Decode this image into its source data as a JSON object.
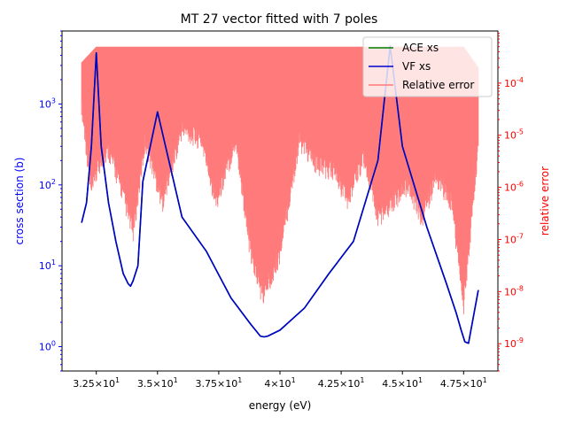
{
  "chart_data": {
    "type": "line",
    "title": "MT 27 vector fitted with 7 poles",
    "xlabel": "energy (eV)",
    "ylabel_left": "cross section (b)",
    "ylabel_right": "relative error",
    "x_range": [
      31.1,
      48.9
    ],
    "x_ticks": [
      32.5,
      35.0,
      37.5,
      40.0,
      42.5,
      45.0,
      47.5
    ],
    "x_tick_labels": [
      "3.25×10^1",
      "3.5×10^1",
      "3.75×10^1",
      "4×10^1",
      "4.25×10^1",
      "4.5×10^1",
      "4.75×10^1"
    ],
    "y_left_scale": "log",
    "y_left_range": [
      0.5,
      8000
    ],
    "y_left_ticks": [
      1,
      10,
      100,
      1000
    ],
    "y_left_tick_labels": [
      "10^0",
      "10^1",
      "10^2",
      "10^3"
    ],
    "y_right_scale": "log",
    "y_right_range": [
      3e-10,
      0.001
    ],
    "y_right_ticks": [
      1e-09,
      1e-08,
      1e-07,
      1e-06,
      1e-05,
      0.0001
    ],
    "y_right_tick_labels": [
      "10^-9",
      "10^-8",
      "10^-7",
      "10^-6",
      "10^-5",
      "10^-4"
    ],
    "grid": false,
    "legend_position": "top-right",
    "colors": {
      "ace": "#008000",
      "vf": "#0000cc",
      "error": "#ff7a7a",
      "left_axis": "#0000ff",
      "right_axis": "#ff0000",
      "axis": "#000000"
    },
    "series": [
      {
        "name": "ACE xs",
        "axis": "left",
        "x": [
          31.9,
          32.1,
          32.3,
          32.5,
          32.7,
          33.0,
          33.3,
          33.6,
          33.8,
          33.9,
          34.0,
          34.2,
          34.4,
          35.0,
          36.0,
          37.0,
          38.0,
          38.8,
          39.2,
          39.35,
          39.5,
          40.0,
          41.0,
          42.0,
          43.0,
          44.0,
          44.5,
          45.0,
          46.0,
          46.8,
          47.2,
          47.4,
          47.55,
          47.7,
          48.1
        ],
        "values": [
          34,
          60,
          300,
          4300,
          300,
          60,
          20,
          8,
          6,
          5.6,
          6.5,
          10,
          110,
          800,
          40,
          15,
          4,
          1.9,
          1.35,
          1.32,
          1.35,
          1.6,
          3,
          8,
          20,
          200,
          5200,
          300,
          30,
          6,
          2.6,
          1.6,
          1.15,
          1.1,
          5
        ]
      },
      {
        "name": "VF xs",
        "axis": "left",
        "x": [
          31.9,
          32.1,
          32.3,
          32.5,
          32.7,
          33.0,
          33.3,
          33.6,
          33.8,
          33.9,
          34.0,
          34.2,
          34.4,
          35.0,
          36.0,
          37.0,
          38.0,
          38.8,
          39.2,
          39.35,
          39.5,
          40.0,
          41.0,
          42.0,
          43.0,
          44.0,
          44.5,
          45.0,
          46.0,
          46.8,
          47.2,
          47.4,
          47.55,
          47.7,
          48.1
        ],
        "values": [
          34,
          60,
          300,
          4300,
          300,
          60,
          20,
          8,
          6,
          5.6,
          6.5,
          10,
          110,
          800,
          40,
          15,
          4,
          1.9,
          1.35,
          1.32,
          1.35,
          1.6,
          3,
          8,
          20,
          200,
          5200,
          300,
          30,
          6,
          2.6,
          1.6,
          1.15,
          1.1,
          5
        ]
      },
      {
        "name": "Relative error",
        "axis": "right",
        "envelope_upper": {
          "x": [
            31.9,
            32.5,
            33.5,
            35.0,
            37.0,
            38.5,
            39.2,
            40.5,
            42.5,
            44.0,
            45.0,
            46.5,
            47.5,
            48.1
          ],
          "values": [
            0.00025,
            0.0005,
            0.0005,
            0.0005,
            0.0005,
            0.0005,
            0.0005,
            0.0005,
            0.0005,
            0.0005,
            0.0005,
            0.0005,
            0.0005,
            0.0002
          ]
        },
        "envelope_lower": {
          "x": [
            31.9,
            32.3,
            32.6,
            33.0,
            33.5,
            34.0,
            34.5,
            35.2,
            36.0,
            36.8,
            37.4,
            38.2,
            38.8,
            39.3,
            40.0,
            40.8,
            41.5,
            42.2,
            42.8,
            43.4,
            44.0,
            44.6,
            45.2,
            45.8,
            46.4,
            47.0,
            47.5,
            48.1
          ],
          "values": [
            1.5e-05,
            3e-07,
            1e-06,
            2e-06,
            4e-07,
            5e-08,
            3e-06,
            2e-07,
            5e-06,
            3e-06,
            2e-07,
            3e-06,
            2e-08,
            3e-09,
            2e-08,
            3e-06,
            1e-06,
            8e-07,
            2e-07,
            1.5e-06,
            1e-07,
            2e-07,
            4e-07,
            1e-07,
            6e-07,
            2e-07,
            2e-09,
            2e-06
          ]
        }
      }
    ]
  }
}
